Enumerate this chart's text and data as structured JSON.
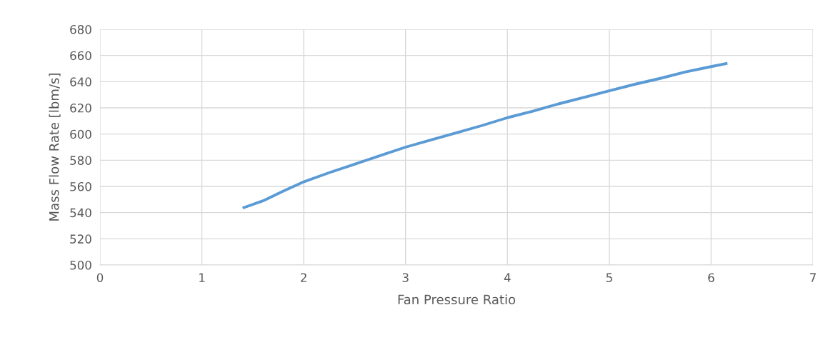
{
  "chart_data": {
    "type": "line",
    "xlabel": "Fan Pressure Ratio",
    "ylabel": "Mass Flow Rate [lbm/s]",
    "series": [
      {
        "color": "#5b9bd5",
        "x": [
          1.4,
          1.6,
          1.8,
          2.0,
          2.25,
          2.5,
          2.75,
          3.0,
          3.25,
          3.5,
          3.75,
          4.0,
          4.25,
          4.5,
          4.75,
          5.0,
          5.25,
          5.5,
          5.75,
          6.0,
          6.16
        ],
        "values": [
          543.5,
          549,
          556.5,
          563.5,
          570.5,
          577,
          583.5,
          590,
          595.5,
          601,
          606.5,
          612.5,
          617.5,
          623,
          628,
          633,
          638,
          642.5,
          647.5,
          651.5,
          654
        ]
      }
    ],
    "xlim": [
      0,
      7
    ],
    "xticks": [
      0,
      1,
      2,
      3,
      4,
      5,
      6,
      7
    ],
    "ylim": [
      500,
      680
    ],
    "yticks": [
      500,
      520,
      540,
      560,
      580,
      600,
      620,
      640,
      660,
      680
    ],
    "grid": true,
    "marker": "none",
    "line_style": "solid"
  }
}
